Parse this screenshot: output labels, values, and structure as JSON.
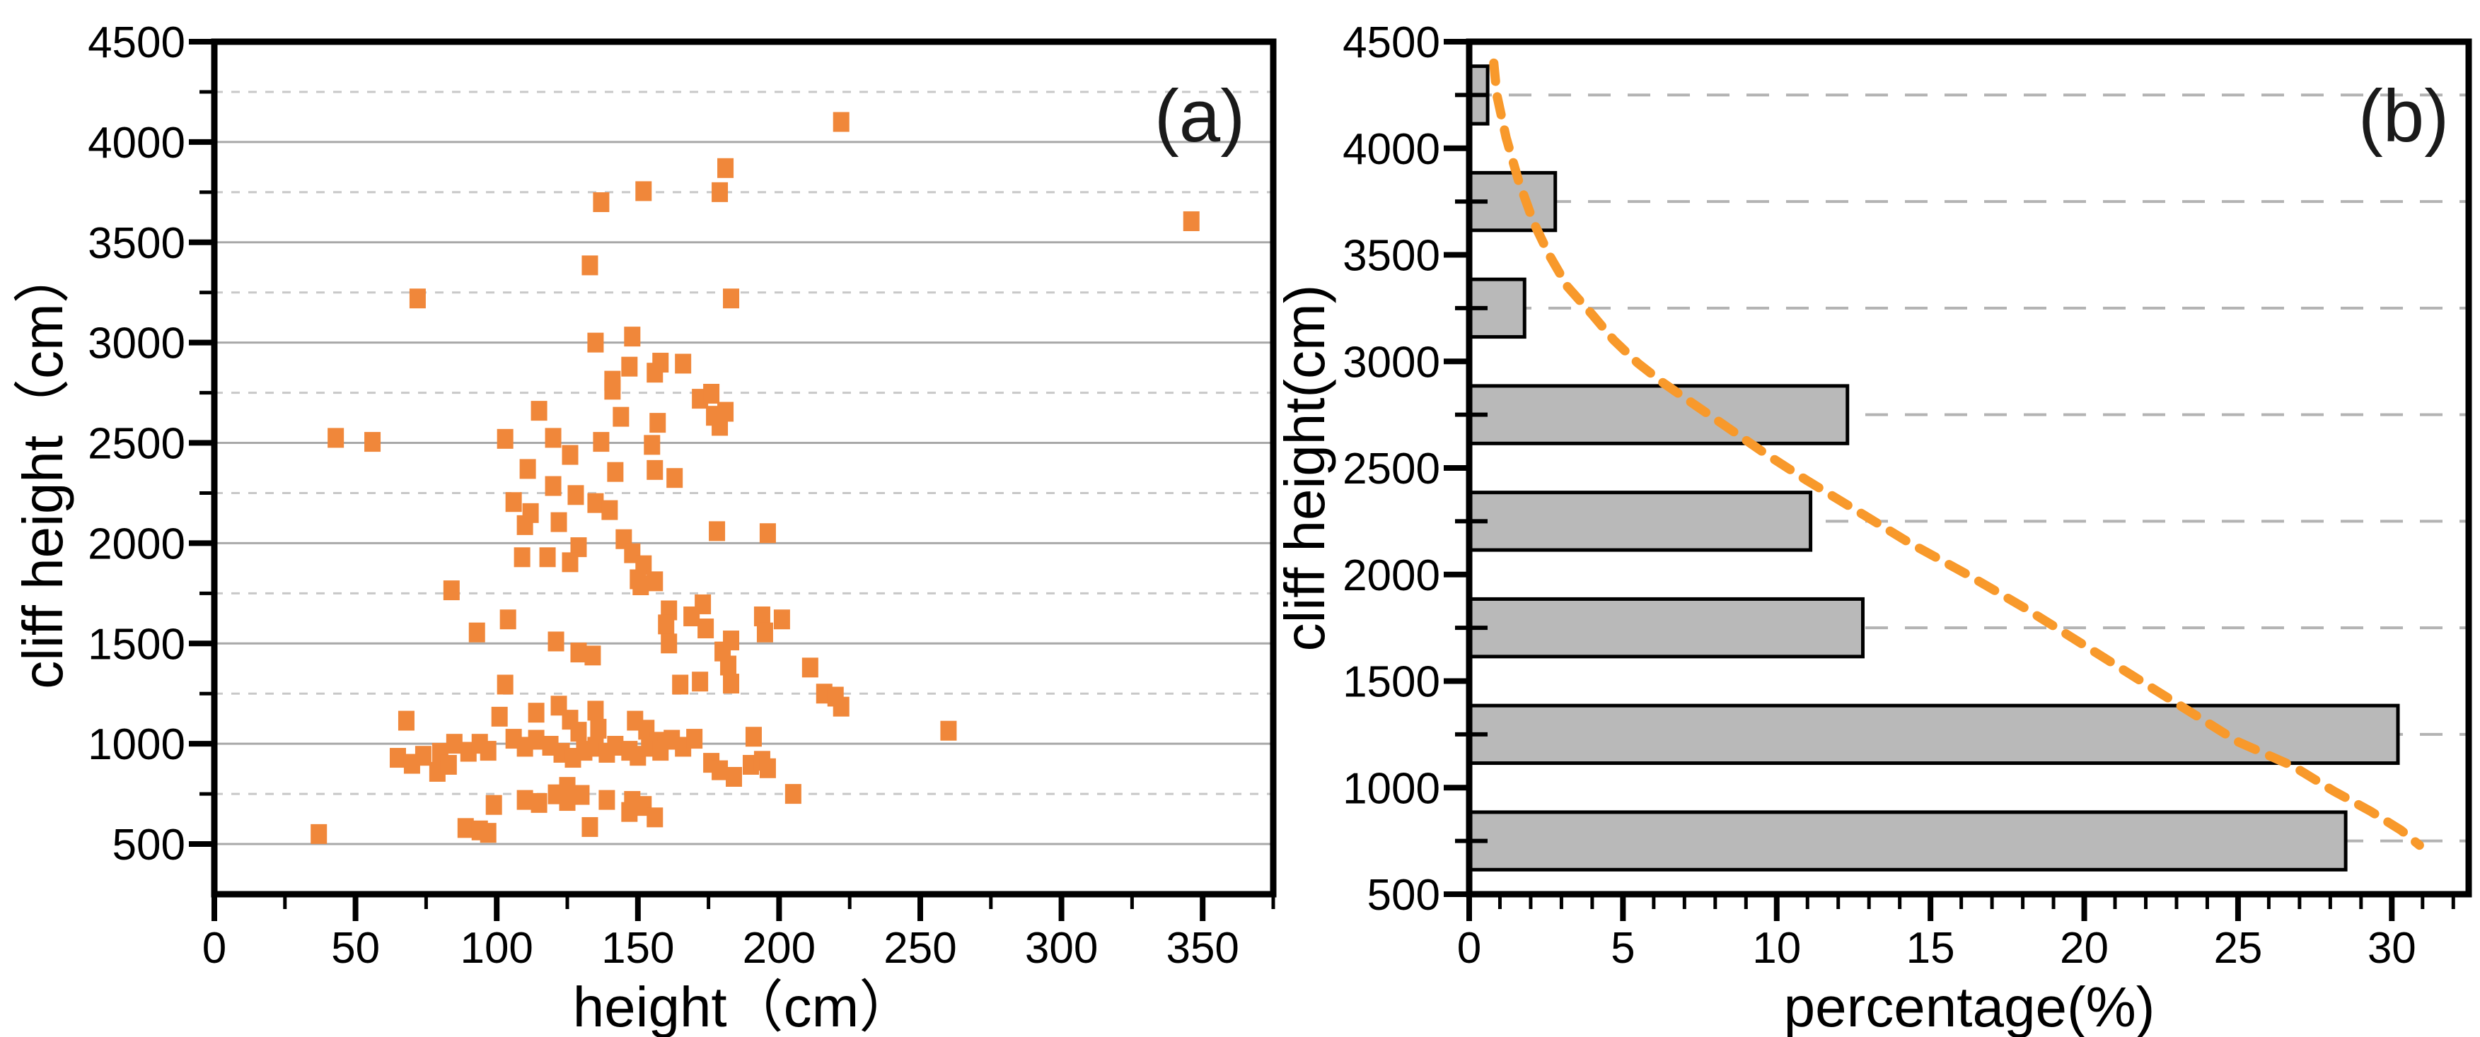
{
  "figure": {
    "background": "#ffffff",
    "border_color": "#000000",
    "grid_solid_color": "#a8a8a8",
    "grid_dash_color_a": "#c8c8c8",
    "grid_dash_color_b": "#b3b3b3"
  },
  "chart_data": [
    {
      "type": "scatter",
      "panel": "a",
      "title": "(a)",
      "xlabel": "height（cm）",
      "ylabel": "cliff height（cm）",
      "xlim": [
        0,
        375
      ],
      "ylim": [
        250,
        4500
      ],
      "x_major_ticks": [
        0,
        50,
        100,
        150,
        200,
        250,
        300,
        350
      ],
      "x_minor_step": 25,
      "y_major_ticks": [
        500,
        1000,
        1500,
        2000,
        2500,
        3000,
        3500,
        4000,
        4500
      ],
      "y_minor_ticks": [
        750,
        1250,
        1750,
        2250,
        2750,
        3250,
        3750,
        4250
      ],
      "grid": "horizontal-major-solid-minor-dashed",
      "marker": "square",
      "marker_color": "#f0873a",
      "points": [
        [
          222,
          4100
        ],
        [
          346,
          3605
        ],
        [
          137,
          3700
        ],
        [
          152,
          3755
        ],
        [
          181,
          3870
        ],
        [
          179,
          3750
        ],
        [
          133,
          3385
        ],
        [
          72,
          3220
        ],
        [
          183,
          3220
        ],
        [
          135,
          3000
        ],
        [
          148,
          3030
        ],
        [
          147,
          2880
        ],
        [
          158,
          2900
        ],
        [
          166,
          2895
        ],
        [
          156,
          2850
        ],
        [
          141,
          2810
        ],
        [
          172,
          2720
        ],
        [
          141,
          2765
        ],
        [
          176,
          2745
        ],
        [
          177,
          2635
        ],
        [
          179,
          2585
        ],
        [
          181,
          2655
        ],
        [
          115,
          2660
        ],
        [
          144,
          2630
        ],
        [
          157,
          2600
        ],
        [
          43,
          2525
        ],
        [
          56,
          2505
        ],
        [
          103,
          2520
        ],
        [
          120,
          2525
        ],
        [
          137,
          2505
        ],
        [
          155,
          2490
        ],
        [
          126,
          2440
        ],
        [
          111,
          2370
        ],
        [
          142,
          2355
        ],
        [
          156,
          2365
        ],
        [
          163,
          2325
        ],
        [
          120,
          2285
        ],
        [
          106,
          2205
        ],
        [
          128,
          2240
        ],
        [
          135,
          2200
        ],
        [
          140,
          2165
        ],
        [
          112,
          2150
        ],
        [
          122,
          2105
        ],
        [
          110,
          2090
        ],
        [
          178,
          2060
        ],
        [
          196,
          2050
        ],
        [
          129,
          1980
        ],
        [
          145,
          2020
        ],
        [
          109,
          1930
        ],
        [
          118,
          1930
        ],
        [
          126,
          1905
        ],
        [
          148,
          1950
        ],
        [
          152,
          1890
        ],
        [
          150,
          1820
        ],
        [
          156,
          1810
        ],
        [
          151,
          1790
        ],
        [
          84,
          1765
        ],
        [
          173,
          1695
        ],
        [
          161,
          1665
        ],
        [
          169,
          1635
        ],
        [
          104,
          1620
        ],
        [
          160,
          1595
        ],
        [
          93,
          1555
        ],
        [
          174,
          1575
        ],
        [
          194,
          1635
        ],
        [
          201,
          1620
        ],
        [
          195,
          1555
        ],
        [
          183,
          1515
        ],
        [
          180,
          1460
        ],
        [
          121,
          1510
        ],
        [
          129,
          1455
        ],
        [
          134,
          1440
        ],
        [
          161,
          1500
        ],
        [
          165,
          1295
        ],
        [
          172,
          1310
        ],
        [
          182,
          1390
        ],
        [
          183,
          1300
        ],
        [
          103,
          1295
        ],
        [
          211,
          1380
        ],
        [
          216,
          1250
        ],
        [
          220,
          1235
        ],
        [
          222,
          1185
        ],
        [
          68,
          1115
        ],
        [
          101,
          1135
        ],
        [
          114,
          1155
        ],
        [
          122,
          1190
        ],
        [
          126,
          1120
        ],
        [
          129,
          1060
        ],
        [
          135,
          1165
        ],
        [
          136,
          1075
        ],
        [
          149,
          1115
        ],
        [
          153,
          1070
        ],
        [
          157,
          1010
        ],
        [
          162,
          1020
        ],
        [
          106,
          1025
        ],
        [
          110,
          985
        ],
        [
          114,
          1020
        ],
        [
          85,
          1000
        ],
        [
          90,
          960
        ],
        [
          94,
          1000
        ],
        [
          97,
          965
        ],
        [
          80,
          955
        ],
        [
          65,
          930
        ],
        [
          70,
          900
        ],
        [
          74,
          940
        ],
        [
          79,
          860
        ],
        [
          83,
          895
        ],
        [
          119,
          990
        ],
        [
          123,
          955
        ],
        [
          127,
          930
        ],
        [
          131,
          965
        ],
        [
          135,
          985
        ],
        [
          139,
          955
        ],
        [
          142,
          990
        ],
        [
          147,
          965
        ],
        [
          150,
          940
        ],
        [
          154,
          985
        ],
        [
          158,
          965
        ],
        [
          166,
          985
        ],
        [
          170,
          1025
        ],
        [
          191,
          1035
        ],
        [
          260,
          1065
        ],
        [
          176,
          905
        ],
        [
          179,
          868
        ],
        [
          184,
          835
        ],
        [
          190,
          895
        ],
        [
          194,
          915
        ],
        [
          196,
          878
        ],
        [
          99,
          695
        ],
        [
          110,
          720
        ],
        [
          115,
          705
        ],
        [
          121,
          748
        ],
        [
          125,
          715
        ],
        [
          130,
          745
        ],
        [
          139,
          720
        ],
        [
          148,
          715
        ],
        [
          147,
          660
        ],
        [
          152,
          690
        ],
        [
          156,
          633
        ],
        [
          125,
          785
        ],
        [
          205,
          750
        ],
        [
          37,
          550
        ],
        [
          89,
          580
        ],
        [
          94,
          568
        ],
        [
          97,
          556
        ],
        [
          133,
          585
        ]
      ]
    },
    {
      "type": "bar",
      "panel": "b",
      "title": "(b)",
      "orientation": "horizontal",
      "xlabel": "percentage(%)",
      "ylabel": "cliff height(cm)",
      "xlim": [
        0,
        32.5
      ],
      "ylim": [
        500,
        4500
      ],
      "x_major_ticks": [
        0,
        5,
        10,
        15,
        20,
        25,
        30
      ],
      "x_minor_step": 1,
      "y_major_ticks": [
        500,
        1000,
        1500,
        2000,
        2500,
        3000,
        3500,
        4000,
        4500
      ],
      "y_minor_ticks": [
        750,
        1250,
        1750,
        2250,
        2750,
        3250,
        3750,
        4250
      ],
      "grid": "horizontal-minor-dashed",
      "bar_half_height": 135,
      "bar_fill": "#b9b9b9",
      "bar_edge": "#000000",
      "bars": [
        {
          "center": 4250,
          "value": 0.6
        },
        {
          "center": 3750,
          "value": 2.8
        },
        {
          "center": 3250,
          "value": 1.8
        },
        {
          "center": 2750,
          "value": 12.3
        },
        {
          "center": 2250,
          "value": 11.1
        },
        {
          "center": 1750,
          "value": 12.8
        },
        {
          "center": 1250,
          "value": 30.2
        },
        {
          "center": 750,
          "value": 28.5
        }
      ],
      "trend_curve": {
        "style": "dashed",
        "color": "#f8992b",
        "points": [
          [
            0.8,
            4400
          ],
          [
            0.9,
            4250
          ],
          [
            1.2,
            4050
          ],
          [
            1.6,
            3850
          ],
          [
            2.1,
            3650
          ],
          [
            2.6,
            3500
          ],
          [
            3.2,
            3350
          ],
          [
            4.0,
            3220
          ],
          [
            4.7,
            3100
          ],
          [
            5.5,
            2990
          ],
          [
            6.3,
            2900
          ],
          [
            7.4,
            2790
          ],
          [
            8.3,
            2700
          ],
          [
            9.6,
            2570
          ],
          [
            11.0,
            2440
          ],
          [
            12.6,
            2300
          ],
          [
            14.3,
            2150
          ],
          [
            16.2,
            2000
          ],
          [
            18.1,
            1840
          ],
          [
            20.2,
            1650
          ],
          [
            22.4,
            1450
          ],
          [
            25.0,
            1215
          ],
          [
            26.8,
            1100
          ],
          [
            28.1,
            985
          ],
          [
            29.3,
            890
          ],
          [
            30.3,
            800
          ],
          [
            30.9,
            730
          ]
        ]
      }
    }
  ]
}
